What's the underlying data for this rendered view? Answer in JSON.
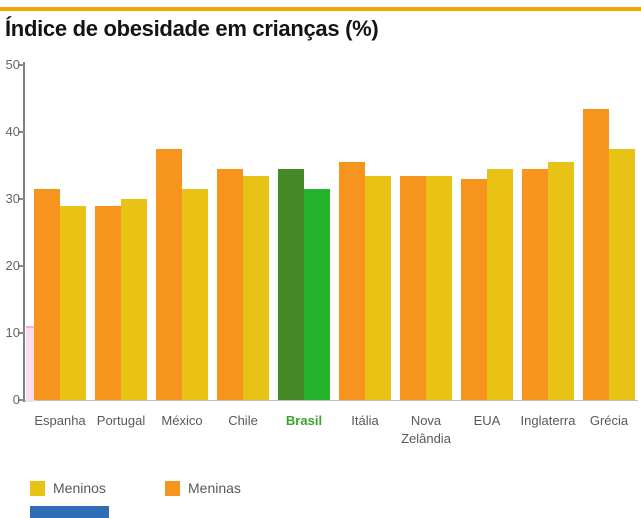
{
  "page": {
    "background": "#FFFFFF",
    "top_rule_color": "#F0A500",
    "bottom_bar_color": "#2F6DB5"
  },
  "chart_data": {
    "type": "bar",
    "title": "Índice de obesidade em crianças (%)",
    "categories": [
      "Espanha",
      "Portugal",
      "México",
      "Chile",
      "Brasil",
      "Itália",
      "Nova Zelândia",
      "EUA",
      "Inglaterra",
      "Grécia"
    ],
    "series": [
      {
        "name": "Meninas",
        "color": "#F7941E",
        "values": [
          31.5,
          29,
          37.5,
          34.5,
          34.5,
          35.5,
          33.5,
          33,
          34.5,
          43.5
        ]
      },
      {
        "name": "Meninos",
        "color": "#E9C216",
        "values": [
          29,
          30,
          31.5,
          33.5,
          31.5,
          33.5,
          33.5,
          34.5,
          35.5,
          37.5
        ]
      }
    ],
    "bar_order": [
      "Meninas",
      "Meninos"
    ],
    "highlight": {
      "category": "Brasil",
      "colors": {
        "Meninas": "#468A28",
        "Meninos": "#24B32A"
      },
      "label_color": "#3CA32C"
    },
    "ylim": [
      0,
      50
    ],
    "yticks": [
      0,
      10,
      20,
      30,
      40,
      50
    ],
    "grid": false,
    "axis_color": "#7F7F7F",
    "tick_label_color": "#666666",
    "xlabel_color": "#595959",
    "legend": {
      "position": "bottom",
      "items": [
        {
          "label": "Meninos",
          "color": "#E9C216"
        },
        {
          "label": "Meninas",
          "color": "#F7941E"
        }
      ]
    },
    "stray_pink_bar": {
      "value": 11,
      "color": "#F9DEF3"
    }
  }
}
